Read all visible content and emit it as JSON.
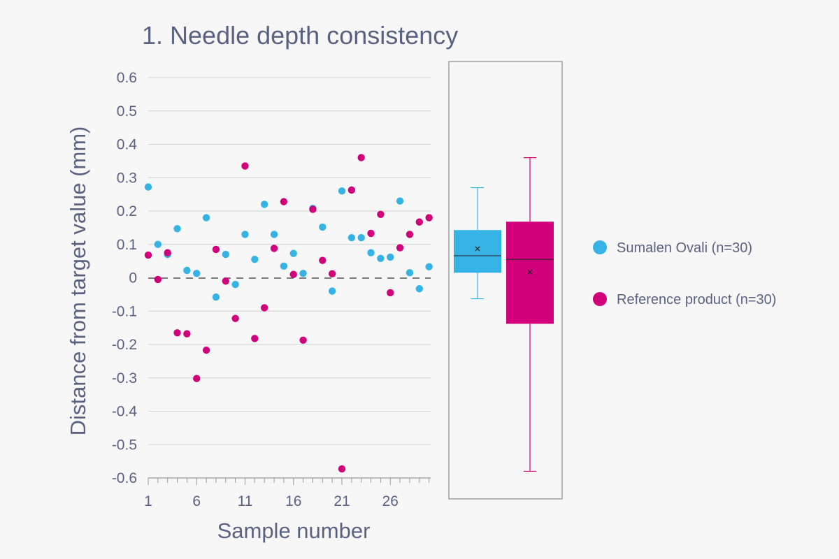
{
  "chart_data": {
    "type": "scatter",
    "title": "1. Needle depth consistency",
    "xlabel": "Sample number",
    "ylabel": "Distance from target value (mm)",
    "x_ticks": [
      1,
      6,
      11,
      16,
      21,
      26
    ],
    "xlim": [
      1,
      30
    ],
    "ylim": [
      -0.6,
      0.6
    ],
    "y_ticks": [
      "-0.6",
      "-0.5",
      "-0.4",
      "-0.3",
      "-0.2",
      "-0.1",
      "0",
      "0.1",
      "0.2",
      "0.3",
      "0.4",
      "0.5",
      "0.6"
    ],
    "grid": "horizontal",
    "reference_line": 0,
    "legend_position": "right",
    "series": [
      {
        "name": "Sumalen Ovali (n=30)",
        "color": "#35b3e5",
        "x": [
          1,
          2,
          3,
          4,
          5,
          6,
          7,
          8,
          9,
          10,
          11,
          12,
          13,
          14,
          15,
          16,
          17,
          18,
          19,
          20,
          21,
          22,
          23,
          24,
          25,
          26,
          27,
          28,
          29,
          30
        ],
        "values": [
          0.272,
          0.1,
          0.07,
          0.147,
          0.022,
          0.013,
          0.18,
          -0.058,
          0.07,
          -0.02,
          0.13,
          0.055,
          0.22,
          0.13,
          0.035,
          0.073,
          0.013,
          0.208,
          0.152,
          -0.04,
          0.26,
          0.12,
          0.12,
          0.075,
          0.058,
          0.062,
          0.23,
          0.015,
          -0.033,
          0.033
        ],
        "box": {
          "min": -0.063,
          "q1": 0.015,
          "median": 0.066,
          "q3": 0.143,
          "max": 0.27,
          "mean": 0.087
        }
      },
      {
        "name": "Reference product (n=30)",
        "color": "#d1007a",
        "x": [
          1,
          2,
          3,
          4,
          5,
          6,
          7,
          8,
          9,
          10,
          11,
          12,
          13,
          14,
          15,
          16,
          17,
          18,
          19,
          20,
          21,
          22,
          23,
          24,
          25,
          26,
          27,
          28,
          29,
          30
        ],
        "values": [
          0.068,
          -0.005,
          0.075,
          -0.165,
          -0.168,
          -0.302,
          -0.217,
          0.085,
          -0.01,
          -0.122,
          0.335,
          -0.182,
          -0.09,
          0.088,
          0.228,
          0.01,
          -0.187,
          0.205,
          0.052,
          0.012,
          -0.573,
          0.263,
          0.36,
          0.133,
          0.19,
          -0.045,
          0.09,
          0.13,
          0.167,
          0.18
        ],
        "box": {
          "min": -0.58,
          "q1": -0.138,
          "median": 0.055,
          "q3": 0.168,
          "max": 0.36,
          "mean": 0.017
        }
      }
    ]
  }
}
